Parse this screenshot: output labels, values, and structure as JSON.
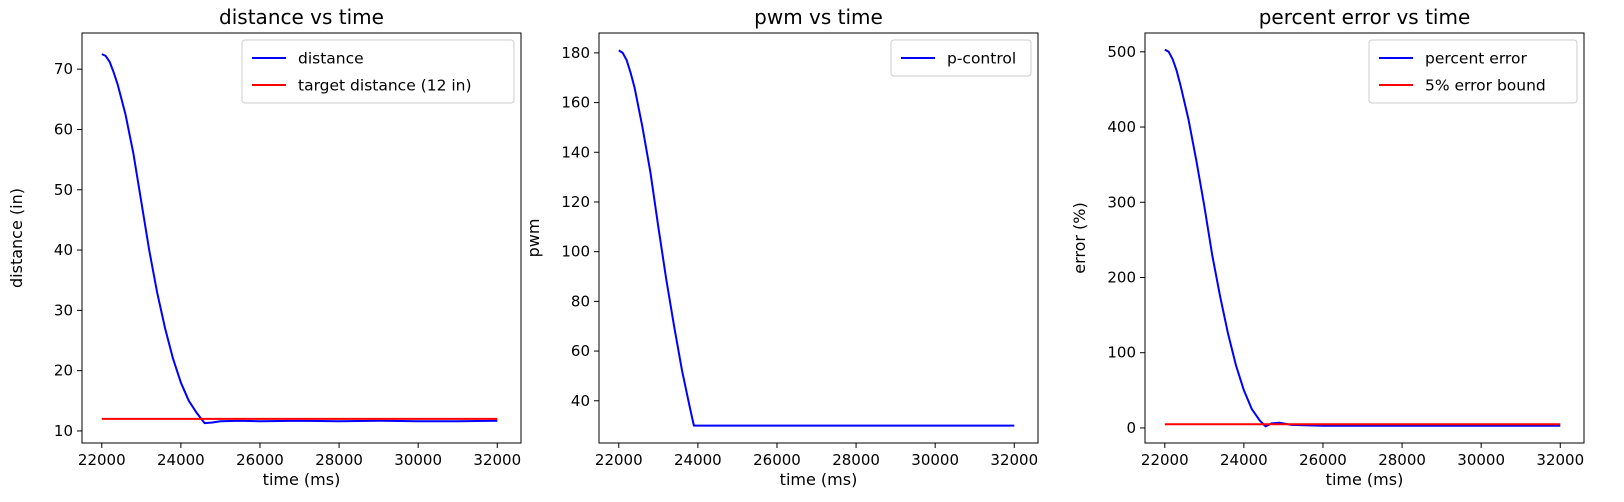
{
  "chart_data": [
    {
      "type": "line",
      "title": "distance vs time",
      "xlabel": "time (ms)",
      "ylabel": "distance (in)",
      "xlim": [
        21500,
        32600
      ],
      "ylim": [
        8,
        76
      ],
      "xticks": [
        22000,
        24000,
        26000,
        28000,
        30000,
        32000
      ],
      "yticks": [
        10,
        20,
        30,
        40,
        50,
        60,
        70
      ],
      "grid": false,
      "legend_position": "top-right",
      "series": [
        {
          "name": "distance",
          "color": "#0000ff",
          "x": [
            22000,
            22100,
            22200,
            22300,
            22400,
            22600,
            22800,
            23000,
            23200,
            23400,
            23600,
            23800,
            24000,
            24200,
            24400,
            24600,
            24800,
            25000,
            25500,
            26000,
            27000,
            28000,
            29000,
            30000,
            31000,
            32000
          ],
          "y": [
            72.5,
            72.2,
            71.2,
            69.5,
            67.5,
            62.5,
            56,
            48,
            40,
            33,
            27,
            22,
            18,
            15,
            13,
            11.3,
            11.4,
            11.6,
            11.7,
            11.6,
            11.7,
            11.6,
            11.7,
            11.6,
            11.6,
            11.7
          ]
        },
        {
          "name": "target distance (12 in)",
          "color": "#ff0000",
          "x": [
            22000,
            32000
          ],
          "y": [
            12,
            12
          ]
        }
      ]
    },
    {
      "type": "line",
      "title": "pwm vs time",
      "xlabel": "time (ms)",
      "ylabel": "pwm",
      "xlim": [
        21500,
        32600
      ],
      "ylim": [
        23,
        188
      ],
      "xticks": [
        22000,
        24000,
        26000,
        28000,
        30000,
        32000
      ],
      "yticks": [
        40,
        60,
        80,
        100,
        120,
        140,
        160,
        180
      ],
      "grid": false,
      "legend_position": "top-right",
      "series": [
        {
          "name": "p-control",
          "color": "#0000ff",
          "x": [
            22000,
            22100,
            22200,
            22300,
            22400,
            22600,
            22800,
            23000,
            23200,
            23400,
            23600,
            23800,
            23900,
            24000,
            26000,
            28000,
            30000,
            32000
          ],
          "y": [
            181,
            180,
            177,
            172,
            166,
            150,
            132,
            110,
            89,
            70,
            52,
            37,
            30,
            30,
            30,
            30,
            30,
            30
          ]
        }
      ]
    },
    {
      "type": "line",
      "title": "percent error vs time",
      "xlabel": "time (ms)",
      "ylabel": "error (%)",
      "xlim": [
        21500,
        32600
      ],
      "ylim": [
        -20,
        525
      ],
      "xticks": [
        22000,
        24000,
        26000,
        28000,
        30000,
        32000
      ],
      "yticks": [
        0,
        100,
        200,
        300,
        400,
        500
      ],
      "grid": false,
      "legend_position": "top-right",
      "series": [
        {
          "name": "percent error",
          "color": "#0000ff",
          "x": [
            22000,
            22100,
            22200,
            22300,
            22400,
            22600,
            22800,
            23000,
            23200,
            23400,
            23600,
            23800,
            24000,
            24200,
            24400,
            24550,
            24700,
            24900,
            25200,
            26000,
            27000,
            28000,
            29000,
            30000,
            31000,
            32000
          ],
          "y": [
            503,
            500,
            490,
            475,
            455,
            410,
            355,
            295,
            230,
            175,
            125,
            83,
            50,
            25,
            10,
            2,
            6,
            7,
            4,
            3,
            3,
            3,
            3,
            3,
            3,
            3
          ]
        },
        {
          "name": "5% error bound",
          "color": "#ff0000",
          "x": [
            22000,
            32000
          ],
          "y": [
            5,
            5
          ]
        }
      ]
    }
  ]
}
